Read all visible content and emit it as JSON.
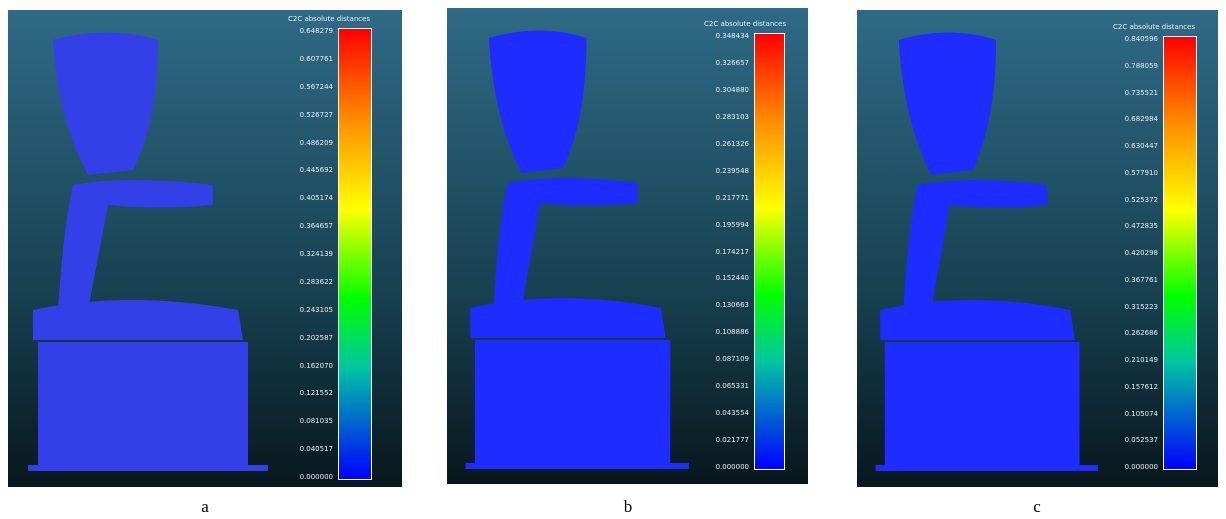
{
  "panels": [
    {
      "scale_title": "C2C absolute distances",
      "caption": "a",
      "ticks": [
        "0.648279",
        "0.607761",
        "0.567244",
        "0.526727",
        "0.486209",
        "0.445692",
        "0.405174",
        "0.364657",
        "0.324139",
        "0.283622",
        "0.243105",
        "0.202587",
        "0.162070",
        "0.121552",
        "0.081035",
        "0.040517",
        "0.000000"
      ]
    },
    {
      "scale_title": "C2C absolute distances",
      "caption": "b",
      "ticks": [
        "0.348434",
        "0.326657",
        "0.304880",
        "0.283103",
        "0.261326",
        "0.239548",
        "0.217771",
        "0.195994",
        "0.174217",
        "0.152440",
        "0.130663",
        "0.108886",
        "0.087109",
        "0.065331",
        "0.043554",
        "0.021777",
        "0.000000"
      ]
    },
    {
      "scale_title": "C2C absolute distances",
      "caption": "c",
      "ticks": [
        "0.840596",
        "0.788059",
        "0.735521",
        "0.682984",
        "0.630447",
        "0.577910",
        "0.525372",
        "0.472835",
        "0.420298",
        "0.367761",
        "0.315223",
        "0.262686",
        "0.210149",
        "0.157612",
        "0.105074",
        "0.052537",
        "0.000000"
      ]
    }
  ]
}
